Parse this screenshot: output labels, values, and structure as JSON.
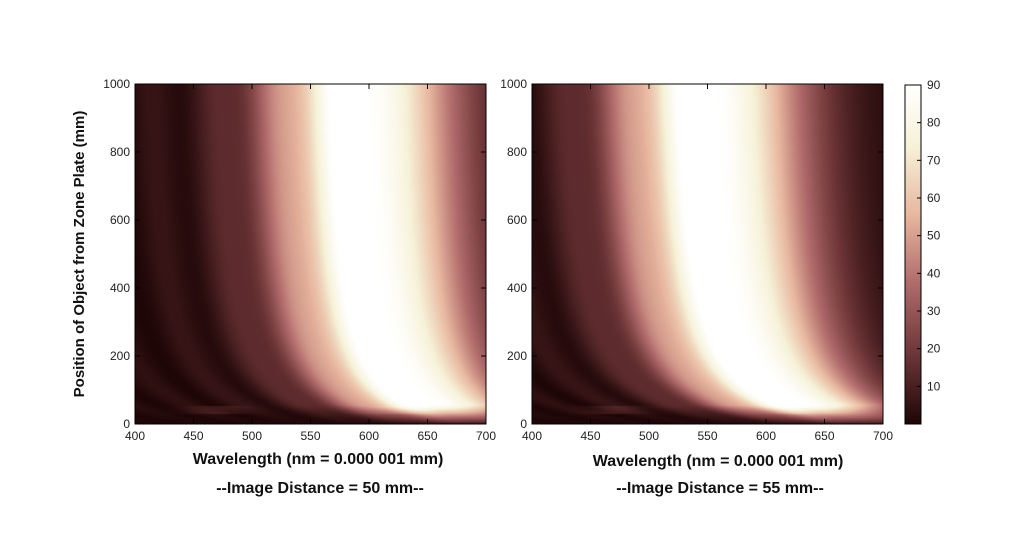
{
  "chart_data": [
    {
      "type": "heatmap",
      "xlabel": "Wavelength (nm = 0.000 001 mm)",
      "ylabel": "Position of Object from Zone Plate (mm)",
      "subtitle": "--Image Distance = 50 mm--",
      "xlim": [
        400,
        700
      ],
      "ylim": [
        0,
        1000
      ],
      "x_ticks": [
        400,
        450,
        500,
        550,
        600,
        650,
        700
      ],
      "y_ticks": [
        0,
        200,
        400,
        600,
        800,
        1000
      ],
      "peak_wavelength_at_far_object": 585,
      "peak_wavelength_at_near_object": 700
    },
    {
      "type": "heatmap",
      "xlabel": "Wavelength (nm = 0.000 001 mm)",
      "ylabel": "",
      "subtitle": "--Image Distance = 55 mm--",
      "xlim": [
        400,
        700
      ],
      "ylim": [
        0,
        1000
      ],
      "x_ticks": [
        400,
        450,
        500,
        550,
        600,
        650,
        700
      ],
      "y_ticks": [
        0,
        200,
        400,
        600,
        800,
        1000
      ],
      "peak_wavelength_at_far_object": 540,
      "peak_wavelength_at_near_object": 690
    }
  ],
  "colorbar": {
    "ticks": [
      10,
      20,
      30,
      40,
      50,
      60,
      70,
      80,
      90
    ],
    "range": [
      0,
      90
    ],
    "colors": [
      "#1e0606",
      "#6b3436",
      "#b26c6c",
      "#e8b8a0",
      "#f6f2d8",
      "#ffffff"
    ]
  }
}
